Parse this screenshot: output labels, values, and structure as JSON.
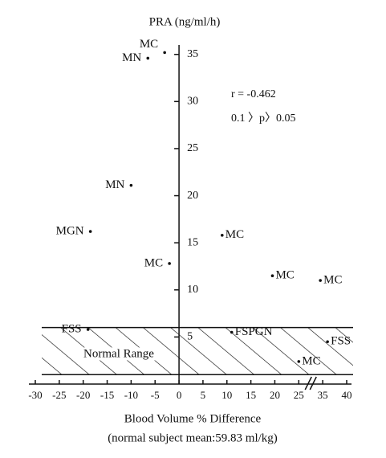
{
  "chart_data": {
    "type": "scatter",
    "title": "PRA (ng/ml/h)",
    "xlabel": "Blood Volume % Difference",
    "xlabel_note": "(normal subject mean:59.83 ml/kg)",
    "annotations": [
      "r = -0.462",
      "0.1 〉p〉0.05"
    ],
    "normal_range": {
      "label": "Normal Range",
      "values": [
        1,
        6
      ]
    },
    "x": [
      -3,
      -6.5,
      -10,
      -18.5,
      -2,
      9,
      19.5,
      34,
      -19,
      11,
      36,
      25
    ],
    "values": [
      35.2,
      34.6,
      21.1,
      16.2,
      12.8,
      15.8,
      11.5,
      11.0,
      5.8,
      5.5,
      4.5,
      2.4
    ],
    "point_labels": [
      "MC",
      "MN",
      "MN",
      "MGN",
      "MC",
      "MC",
      "MC",
      "MC",
      "FSS",
      "FSPGN",
      "FSS",
      "MC"
    ],
    "color": "#111111",
    "ylim": [
      0,
      36
    ],
    "yticks": [
      5,
      10,
      15,
      20,
      25,
      30,
      35
    ],
    "xticks": [
      -30,
      -25,
      -20,
      -15,
      -10,
      -5,
      0,
      5,
      10,
      15,
      20,
      25,
      35,
      40
    ]
  }
}
